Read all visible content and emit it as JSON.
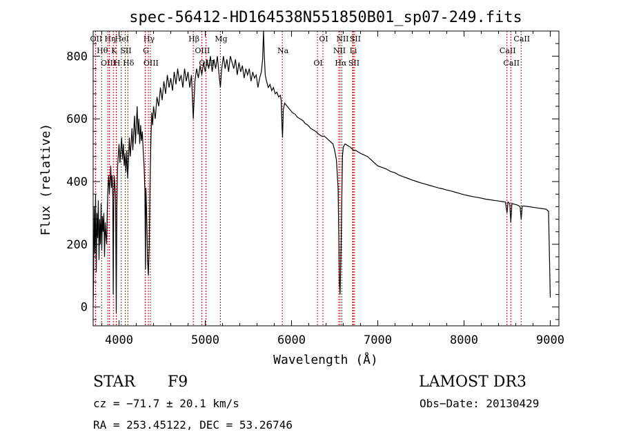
{
  "chart_data": {
    "type": "line",
    "title": "spec-56412-HD164538N551850B01_sp07-249.fits",
    "xlabel": "Wavelength (Å)",
    "ylabel": "Flux (relative)",
    "xlim": [
      3700,
      9100
    ],
    "ylim": [
      -60,
      880
    ],
    "x_ticks": [
      4000,
      5000,
      6000,
      7000,
      8000,
      9000
    ],
    "y_ticks": [
      0,
      200,
      400,
      600,
      800
    ],
    "grid": false,
    "series": [
      {
        "name": "flux",
        "color": "#000000",
        "points": [
          [
            3700,
            0
          ],
          [
            3705,
            90
          ],
          [
            3712,
            320
          ],
          [
            3720,
            170
          ],
          [
            3728,
            360
          ],
          [
            3736,
            110
          ],
          [
            3744,
            300
          ],
          [
            3752,
            220
          ],
          [
            3760,
            340
          ],
          [
            3768,
            150
          ],
          [
            3776,
            280
          ],
          [
            3784,
            200
          ],
          [
            3792,
            330
          ],
          [
            3800,
            180
          ],
          [
            3808,
            290
          ],
          [
            3816,
            240
          ],
          [
            3824,
            300
          ],
          [
            3832,
            160
          ],
          [
            3840,
            270
          ],
          [
            3848,
            230
          ],
          [
            3856,
            200
          ],
          [
            3864,
            310
          ],
          [
            3872,
            380
          ],
          [
            3880,
            420
          ],
          [
            3888,
            360
          ],
          [
            3896,
            400
          ],
          [
            3904,
            450
          ],
          [
            3912,
            380
          ],
          [
            3920,
            420
          ],
          [
            3928,
            350
          ],
          [
            3933,
            40
          ],
          [
            3938,
            300
          ],
          [
            3944,
            420
          ],
          [
            3952,
            390
          ],
          [
            3960,
            350
          ],
          [
            3968,
            -20
          ],
          [
            3974,
            300
          ],
          [
            3982,
            440
          ],
          [
            3990,
            480
          ],
          [
            4000,
            520
          ],
          [
            4010,
            460
          ],
          [
            4020,
            500
          ],
          [
            4030,
            540
          ],
          [
            4040,
            470
          ],
          [
            4050,
            520
          ],
          [
            4060,
            450
          ],
          [
            4070,
            490
          ],
          [
            4080,
            430
          ],
          [
            4090,
            500
          ],
          [
            4100,
            410
          ],
          [
            4110,
            470
          ],
          [
            4120,
            540
          ],
          [
            4130,
            480
          ],
          [
            4140,
            520
          ],
          [
            4150,
            570
          ],
          [
            4160,
            500
          ],
          [
            4170,
            560
          ],
          [
            4180,
            610
          ],
          [
            4190,
            520
          ],
          [
            4200,
            580
          ],
          [
            4210,
            640
          ],
          [
            4220,
            550
          ],
          [
            4230,
            600
          ],
          [
            4240,
            520
          ],
          [
            4250,
            580
          ],
          [
            4260,
            530
          ],
          [
            4270,
            560
          ],
          [
            4280,
            500
          ],
          [
            4290,
            450
          ],
          [
            4300,
            370
          ],
          [
            4306,
            120
          ],
          [
            4312,
            380
          ],
          [
            4320,
            300
          ],
          [
            4330,
            150
          ],
          [
            4340,
            100
          ],
          [
            4350,
            200
          ],
          [
            4360,
            400
          ],
          [
            4370,
            540
          ],
          [
            4380,
            620
          ],
          [
            4390,
            580
          ],
          [
            4400,
            640
          ],
          [
            4420,
            600
          ],
          [
            4440,
            670
          ],
          [
            4460,
            640
          ],
          [
            4480,
            700
          ],
          [
            4500,
            660
          ],
          [
            4520,
            720
          ],
          [
            4540,
            680
          ],
          [
            4560,
            740
          ],
          [
            4580,
            700
          ],
          [
            4600,
            730
          ],
          [
            4620,
            690
          ],
          [
            4640,
            750
          ],
          [
            4660,
            710
          ],
          [
            4680,
            760
          ],
          [
            4700,
            720
          ],
          [
            4720,
            740
          ],
          [
            4740,
            700
          ],
          [
            4760,
            760
          ],
          [
            4780,
            720
          ],
          [
            4800,
            750
          ],
          [
            4820,
            700
          ],
          [
            4840,
            740
          ],
          [
            4861,
            600
          ],
          [
            4880,
            720
          ],
          [
            4900,
            760
          ],
          [
            4920,
            730
          ],
          [
            4940,
            770
          ],
          [
            4960,
            740
          ],
          [
            4980,
            780
          ],
          [
            5000,
            750
          ],
          [
            5020,
            790
          ],
          [
            5040,
            760
          ],
          [
            5060,
            800
          ],
          [
            5080,
            750
          ],
          [
            5100,
            790
          ],
          [
            5120,
            760
          ],
          [
            5140,
            800
          ],
          [
            5160,
            740
          ],
          [
            5175,
            700
          ],
          [
            5190,
            760
          ],
          [
            5210,
            800
          ],
          [
            5230,
            760
          ],
          [
            5250,
            790
          ],
          [
            5270,
            750
          ],
          [
            5290,
            800
          ],
          [
            5310,
            780
          ],
          [
            5330,
            760
          ],
          [
            5350,
            790
          ],
          [
            5370,
            740
          ],
          [
            5390,
            780
          ],
          [
            5410,
            750
          ],
          [
            5430,
            770
          ],
          [
            5450,
            730
          ],
          [
            5470,
            760
          ],
          [
            5490,
            740
          ],
          [
            5510,
            760
          ],
          [
            5530,
            720
          ],
          [
            5550,
            750
          ],
          [
            5570,
            730
          ],
          [
            5590,
            740
          ],
          [
            5610,
            700
          ],
          [
            5630,
            730
          ],
          [
            5650,
            750
          ],
          [
            5665,
            790
          ],
          [
            5675,
            880
          ],
          [
            5685,
            800
          ],
          [
            5695,
            740
          ],
          [
            5710,
            720
          ],
          [
            5730,
            700
          ],
          [
            5750,
            710
          ],
          [
            5770,
            690
          ],
          [
            5790,
            700
          ],
          [
            5810,
            680
          ],
          [
            5830,
            685
          ],
          [
            5850,
            670
          ],
          [
            5870,
            675
          ],
          [
            5880,
            660
          ],
          [
            5890,
            570
          ],
          [
            5896,
            540
          ],
          [
            5905,
            630
          ],
          [
            5920,
            650
          ],
          [
            5950,
            640
          ],
          [
            5980,
            630
          ],
          [
            6010,
            620
          ],
          [
            6040,
            615
          ],
          [
            6070,
            605
          ],
          [
            6100,
            600
          ],
          [
            6130,
            595
          ],
          [
            6160,
            585
          ],
          [
            6190,
            580
          ],
          [
            6220,
            570
          ],
          [
            6250,
            565
          ],
          [
            6280,
            560
          ],
          [
            6300,
            555
          ],
          [
            6320,
            550
          ],
          [
            6350,
            545
          ],
          [
            6380,
            545
          ],
          [
            6400,
            540
          ],
          [
            6420,
            535
          ],
          [
            6440,
            530
          ],
          [
            6460,
            525
          ],
          [
            6480,
            520
          ],
          [
            6500,
            500
          ],
          [
            6520,
            470
          ],
          [
            6540,
            380
          ],
          [
            6555,
            80
          ],
          [
            6563,
            40
          ],
          [
            6575,
            200
          ],
          [
            6590,
            480
          ],
          [
            6600,
            510
          ],
          [
            6620,
            520
          ],
          [
            6650,
            515
          ],
          [
            6680,
            510
          ],
          [
            6700,
            505
          ],
          [
            6720,
            500
          ],
          [
            6740,
            500
          ],
          [
            6770,
            495
          ],
          [
            6800,
            490
          ],
          [
            6840,
            485
          ],
          [
            6880,
            480
          ],
          [
            6920,
            470
          ],
          [
            6960,
            460
          ],
          [
            7000,
            450
          ],
          [
            7050,
            445
          ],
          [
            7100,
            440
          ],
          [
            7150,
            432
          ],
          [
            7200,
            428
          ],
          [
            7250,
            420
          ],
          [
            7300,
            415
          ],
          [
            7350,
            410
          ],
          [
            7400,
            405
          ],
          [
            7450,
            400
          ],
          [
            7500,
            396
          ],
          [
            7550,
            392
          ],
          [
            7600,
            388
          ],
          [
            7650,
            384
          ],
          [
            7700,
            380
          ],
          [
            7750,
            377
          ],
          [
            7800,
            373
          ],
          [
            7850,
            370
          ],
          [
            7900,
            366
          ],
          [
            7950,
            362
          ],
          [
            8000,
            358
          ],
          [
            8050,
            355
          ],
          [
            8100,
            352
          ],
          [
            8150,
            350
          ],
          [
            8200,
            347
          ],
          [
            8250,
            344
          ],
          [
            8300,
            342
          ],
          [
            8350,
            340
          ],
          [
            8400,
            338
          ],
          [
            8450,
            336
          ],
          [
            8480,
            335
          ],
          [
            8498,
            300
          ],
          [
            8510,
            335
          ],
          [
            8530,
            330
          ],
          [
            8542,
            270
          ],
          [
            8555,
            330
          ],
          [
            8580,
            328
          ],
          [
            8620,
            325
          ],
          [
            8650,
            320
          ],
          [
            8662,
            280
          ],
          [
            8675,
            322
          ],
          [
            8700,
            322
          ],
          [
            8750,
            320
          ],
          [
            8800,
            318
          ],
          [
            8850,
            316
          ],
          [
            8900,
            314
          ],
          [
            8950,
            312
          ],
          [
            8980,
            305
          ],
          [
            9000,
            30
          ]
        ]
      }
    ],
    "line_annotations": [
      {
        "label": "OII",
        "wavelength": 3727
      },
      {
        "label": "Hθ",
        "wavelength": 3798
      },
      {
        "label": "OIII",
        "wavelength": 3869
      },
      {
        "label": "Hη",
        "wavelength": 3889
      },
      {
        "label": "K",
        "wavelength": 3934
      },
      {
        "label": "H",
        "wavelength": 3968
      },
      {
        "label": "HeI",
        "wavelength": 4026
      },
      {
        "label": "SII",
        "wavelength": 4072
      },
      {
        "label": "Hδ",
        "wavelength": 4102
      },
      {
        "label": "Hγ",
        "wavelength": 4340
      },
      {
        "label": "G",
        "wavelength": 4304
      },
      {
        "label": "OIII",
        "wavelength": 4363
      },
      {
        "label": "Hβ",
        "wavelength": 4861
      },
      {
        "label": "OIII",
        "wavelength": 4959
      },
      {
        "label": "OIII",
        "wavelength": 5007
      },
      {
        "label": "Mg",
        "wavelength": 5175
      },
      {
        "label": "Na",
        "wavelength": 5893
      },
      {
        "label": "OI",
        "wavelength": 6300
      },
      {
        "label": "OI",
        "wavelength": 6364
      },
      {
        "label": "NII",
        "wavelength": 6548
      },
      {
        "label": "Hα",
        "wavelength": 6563
      },
      {
        "label": "NII",
        "wavelength": 6583
      },
      {
        "label": "Li",
        "wavelength": 6708
      },
      {
        "label": "SII",
        "wavelength": 6716
      },
      {
        "label": "SII",
        "wavelength": 6731
      },
      {
        "label": "CaII",
        "wavelength": 8498
      },
      {
        "label": "CaII",
        "wavelength": 8542
      },
      {
        "label": "CaII",
        "wavelength": 8662
      }
    ],
    "annotation_color": "#cc0000"
  },
  "info": {
    "object_type": "STAR",
    "spectral_class": "F9",
    "survey": "LAMOST DR3",
    "redshift": "cz = −71.7 ± 20.1 km/s",
    "obs_date": "Obs−Date: 20130429",
    "coords": "RA = 253.45122, DEC =  53.26746"
  }
}
